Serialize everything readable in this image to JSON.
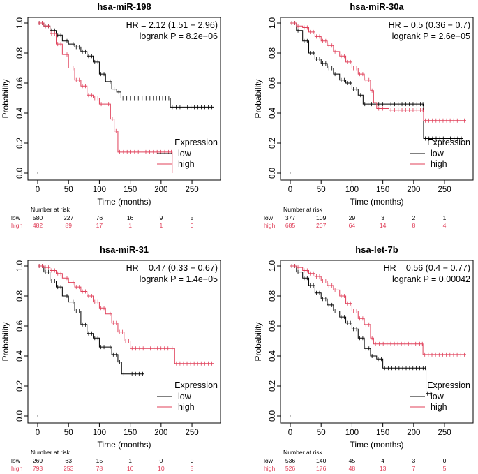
{
  "colors": {
    "low": "#000000",
    "high": "#E0405A"
  },
  "chart_data": [
    {
      "type": "line",
      "title": "hsa-miR-198",
      "xlabel": "Time (months)",
      "ylabel": "Probability",
      "xlim": [
        0,
        285
      ],
      "ylim": [
        0,
        1
      ],
      "xticks": [
        "0",
        "50",
        "100",
        "150",
        "200",
        "250"
      ],
      "yticks": [
        "0.0",
        "0.2",
        "0.4",
        "0.6",
        "0.8",
        "1.0"
      ],
      "hr_text": "HR = 2.12 (1.51 − 2.96)",
      "p_text": "logrank P = 8.2e−06",
      "legend_title": "Expression",
      "legend": [
        "low",
        "high"
      ],
      "risk_header": "Number at risk",
      "risk_labels": [
        "low",
        "high"
      ],
      "risk_times": [
        0,
        50,
        100,
        150,
        200,
        250
      ],
      "risk_low": [
        "580",
        "227",
        "76",
        "16",
        "9",
        "5"
      ],
      "risk_high": [
        "482",
        "89",
        "17",
        "1",
        "1",
        "0"
      ],
      "series": [
        {
          "name": "low",
          "points": [
            [
              0,
              1.0
            ],
            [
              10,
              0.98
            ],
            [
              20,
              0.95
            ],
            [
              30,
              0.92
            ],
            [
              40,
              0.88
            ],
            [
              50,
              0.86
            ],
            [
              60,
              0.84
            ],
            [
              70,
              0.81
            ],
            [
              80,
              0.78
            ],
            [
              90,
              0.74
            ],
            [
              100,
              0.66
            ],
            [
              110,
              0.61
            ],
            [
              120,
              0.56
            ],
            [
              128,
              0.54
            ],
            [
              135,
              0.5
            ],
            [
              160,
              0.5
            ],
            [
              185,
              0.5
            ],
            [
              200,
              0.5
            ],
            [
              215,
              0.44
            ],
            [
              240,
              0.44
            ],
            [
              285,
              0.44
            ]
          ]
        },
        {
          "name": "high",
          "points": [
            [
              0,
              1.0
            ],
            [
              10,
              0.98
            ],
            [
              20,
              0.93
            ],
            [
              30,
              0.86
            ],
            [
              40,
              0.79
            ],
            [
              50,
              0.7
            ],
            [
              60,
              0.62
            ],
            [
              70,
              0.58
            ],
            [
              80,
              0.52
            ],
            [
              90,
              0.5
            ],
            [
              100,
              0.46
            ],
            [
              112,
              0.46
            ],
            [
              118,
              0.36
            ],
            [
              124,
              0.28
            ],
            [
              130,
              0.14
            ],
            [
              160,
              0.14
            ],
            [
              215,
              0.14
            ],
            [
              218,
              0.0
            ]
          ]
        }
      ]
    },
    {
      "type": "line",
      "title": "hsa-miR-30a",
      "xlabel": "Time (months)",
      "ylabel": "Probability",
      "xlim": [
        0,
        285
      ],
      "ylim": [
        0,
        1
      ],
      "xticks": [
        "0",
        "50",
        "100",
        "150",
        "200",
        "250"
      ],
      "yticks": [
        "0.0",
        "0.2",
        "0.4",
        "0.6",
        "0.8",
        "1.0"
      ],
      "hr_text": "HR = 0.5 (0.36 − 0.7)",
      "p_text": "logrank P = 2.6e−05",
      "legend_title": "Expression",
      "legend": [
        "low",
        "high"
      ],
      "risk_header": "Number at risk",
      "risk_labels": [
        "low",
        "high"
      ],
      "risk_times": [
        0,
        50,
        100,
        150,
        200,
        250
      ],
      "risk_low": [
        "377",
        "109",
        "29",
        "3",
        "2",
        "1"
      ],
      "risk_high": [
        "685",
        "207",
        "64",
        "14",
        "8",
        "4"
      ],
      "series": [
        {
          "name": "low",
          "points": [
            [
              0,
              1.0
            ],
            [
              10,
              0.95
            ],
            [
              20,
              0.88
            ],
            [
              30,
              0.8
            ],
            [
              40,
              0.76
            ],
            [
              50,
              0.73
            ],
            [
              60,
              0.7
            ],
            [
              70,
              0.66
            ],
            [
              80,
              0.62
            ],
            [
              90,
              0.6
            ],
            [
              100,
              0.56
            ],
            [
              110,
              0.52
            ],
            [
              118,
              0.46
            ],
            [
              140,
              0.46
            ],
            [
              160,
              0.46
            ],
            [
              214,
              0.46
            ],
            [
              216,
              0.23
            ],
            [
              280,
              0.23
            ]
          ]
        },
        {
          "name": "high",
          "points": [
            [
              0,
              1.0
            ],
            [
              10,
              0.98
            ],
            [
              20,
              0.97
            ],
            [
              30,
              0.94
            ],
            [
              40,
              0.91
            ],
            [
              50,
              0.88
            ],
            [
              60,
              0.85
            ],
            [
              70,
              0.81
            ],
            [
              80,
              0.78
            ],
            [
              90,
              0.74
            ],
            [
              100,
              0.7
            ],
            [
              110,
              0.66
            ],
            [
              120,
              0.62
            ],
            [
              130,
              0.55
            ],
            [
              135,
              0.47
            ],
            [
              140,
              0.43
            ],
            [
              160,
              0.42
            ],
            [
              190,
              0.42
            ],
            [
              214,
              0.42
            ],
            [
              216,
              0.35
            ],
            [
              285,
              0.35
            ]
          ]
        }
      ]
    },
    {
      "type": "line",
      "title": "hsa-miR-31",
      "xlabel": "Time (months)",
      "ylabel": "Probability",
      "xlim": [
        0,
        285
      ],
      "ylim": [
        0,
        1
      ],
      "xticks": [
        "0",
        "50",
        "100",
        "150",
        "200",
        "250"
      ],
      "yticks": [
        "0.0",
        "0.2",
        "0.4",
        "0.6",
        "0.8",
        "1.0"
      ],
      "hr_text": "HR = 0.47 (0.33 − 0.67)",
      "p_text": "logrank P = 1.4e−05",
      "legend_title": "Expression",
      "legend": [
        "low",
        "high"
      ],
      "risk_header": "Number at risk",
      "risk_labels": [
        "low",
        "high"
      ],
      "risk_times": [
        0,
        50,
        100,
        150,
        200,
        250
      ],
      "risk_low": [
        "269",
        "63",
        "15",
        "1",
        "0",
        "0"
      ],
      "risk_high": [
        "793",
        "253",
        "78",
        "16",
        "10",
        "5"
      ],
      "series": [
        {
          "name": "low",
          "points": [
            [
              0,
              1.0
            ],
            [
              10,
              0.96
            ],
            [
              20,
              0.9
            ],
            [
              30,
              0.86
            ],
            [
              40,
              0.8
            ],
            [
              50,
              0.76
            ],
            [
              60,
              0.7
            ],
            [
              70,
              0.61
            ],
            [
              80,
              0.55
            ],
            [
              90,
              0.52
            ],
            [
              100,
              0.46
            ],
            [
              110,
              0.46
            ],
            [
              120,
              0.41
            ],
            [
              130,
              0.36
            ],
            [
              136,
              0.28
            ],
            [
              150,
              0.28
            ],
            [
              173,
              0.28
            ]
          ]
        },
        {
          "name": "high",
          "points": [
            [
              0,
              1.0
            ],
            [
              10,
              0.99
            ],
            [
              20,
              0.97
            ],
            [
              30,
              0.95
            ],
            [
              40,
              0.92
            ],
            [
              50,
              0.89
            ],
            [
              60,
              0.86
            ],
            [
              70,
              0.83
            ],
            [
              80,
              0.8
            ],
            [
              90,
              0.76
            ],
            [
              100,
              0.72
            ],
            [
              110,
              0.68
            ],
            [
              120,
              0.62
            ],
            [
              130,
              0.56
            ],
            [
              140,
              0.5
            ],
            [
              150,
              0.45
            ],
            [
              180,
              0.45
            ],
            [
              214,
              0.45
            ],
            [
              222,
              0.35
            ],
            [
              285,
              0.35
            ]
          ]
        }
      ]
    },
    {
      "type": "line",
      "title": "hsa-let-7b",
      "xlabel": "Time (months)",
      "ylabel": "Probability",
      "xlim": [
        0,
        285
      ],
      "ylim": [
        0,
        1
      ],
      "xticks": [
        "0",
        "50",
        "100",
        "150",
        "200",
        "250"
      ],
      "yticks": [
        "0.0",
        "0.2",
        "0.4",
        "0.6",
        "0.8",
        "1.0"
      ],
      "hr_text": "HR = 0.56 (0.4 − 0.77)",
      "p_text": "logrank P = 0.00042",
      "legend_title": "Expression",
      "legend": [
        "low",
        "high"
      ],
      "risk_header": "Number at risk",
      "risk_labels": [
        "low",
        "high"
      ],
      "risk_times": [
        0,
        50,
        100,
        150,
        200,
        250
      ],
      "risk_low": [
        "536",
        "140",
        "45",
        "4",
        "3",
        "0"
      ],
      "risk_high": [
        "526",
        "176",
        "48",
        "13",
        "7",
        "5"
      ],
      "series": [
        {
          "name": "low",
          "points": [
            [
              0,
              1.0
            ],
            [
              10,
              0.96
            ],
            [
              20,
              0.92
            ],
            [
              30,
              0.87
            ],
            [
              40,
              0.82
            ],
            [
              50,
              0.78
            ],
            [
              60,
              0.74
            ],
            [
              70,
              0.7
            ],
            [
              80,
              0.66
            ],
            [
              90,
              0.62
            ],
            [
              100,
              0.58
            ],
            [
              110,
              0.52
            ],
            [
              120,
              0.45
            ],
            [
              130,
              0.4
            ],
            [
              140,
              0.38
            ],
            [
              150,
              0.32
            ],
            [
              185,
              0.32
            ],
            [
              218,
              0.32
            ],
            [
              220,
              0.15
            ],
            [
              230,
              0.15
            ]
          ]
        },
        {
          "name": "high",
          "points": [
            [
              0,
              1.0
            ],
            [
              10,
              0.99
            ],
            [
              20,
              0.97
            ],
            [
              30,
              0.95
            ],
            [
              40,
              0.93
            ],
            [
              50,
              0.9
            ],
            [
              60,
              0.87
            ],
            [
              70,
              0.84
            ],
            [
              80,
              0.8
            ],
            [
              90,
              0.75
            ],
            [
              100,
              0.7
            ],
            [
              110,
              0.65
            ],
            [
              120,
              0.61
            ],
            [
              130,
              0.52
            ],
            [
              135,
              0.48
            ],
            [
              160,
              0.48
            ],
            [
              200,
              0.48
            ],
            [
              213,
              0.48
            ],
            [
              215,
              0.41
            ],
            [
              285,
              0.41
            ]
          ]
        }
      ]
    }
  ]
}
